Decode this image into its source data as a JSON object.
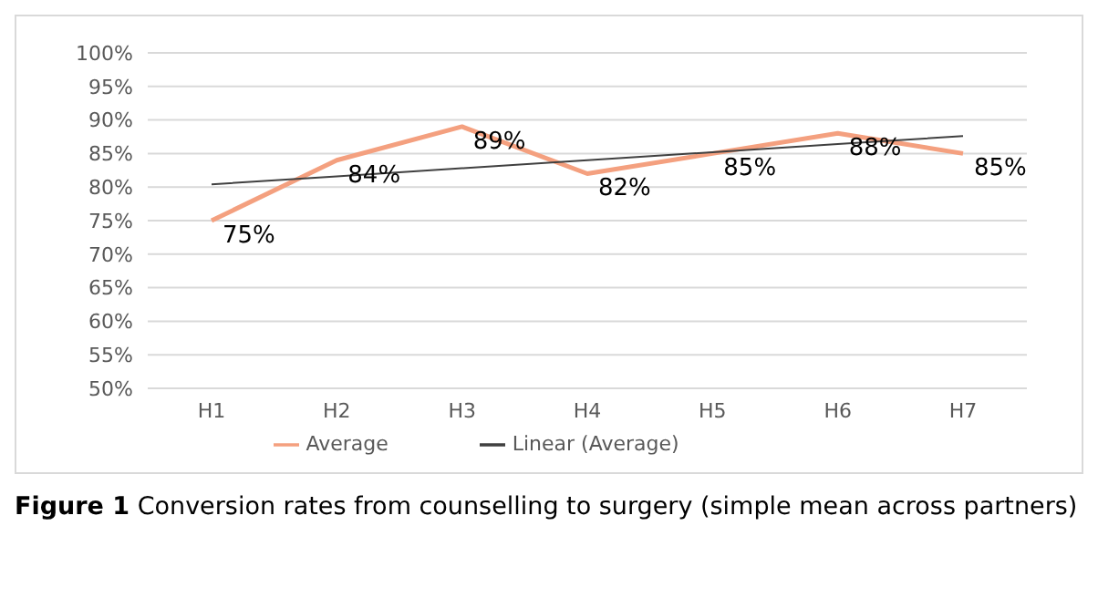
{
  "chart_data": {
    "type": "line",
    "title": "Figure 1 Conversion rates from counselling to surgery (simple mean across partners)",
    "categories": [
      "H1",
      "H2",
      "H3",
      "H4",
      "H5",
      "H6",
      "H7"
    ],
    "series": [
      {
        "name": "Average",
        "color": "#f4a07f",
        "values": [
          75,
          84,
          89,
          82,
          85,
          88,
          85
        ],
        "value_labels": [
          "75%",
          "84%",
          "89%",
          "82%",
          "85%",
          "88%",
          "85%"
        ]
      },
      {
        "name": "Linear (Average)",
        "type": "line",
        "color": "#404040",
        "values": [
          80.4,
          81.6,
          82.8,
          84,
          85.2,
          86.4,
          87.6
        ]
      }
    ],
    "ylim": [
      50,
      100
    ],
    "yticks": [
      {
        "value": 50,
        "label": "50%"
      },
      {
        "value": 55,
        "label": "55%"
      },
      {
        "value": 60,
        "label": "60%"
      },
      {
        "value": 65,
        "label": "65%"
      },
      {
        "value": 70,
        "label": "70%"
      },
      {
        "value": 75,
        "label": "75%"
      },
      {
        "value": 80,
        "label": "80%"
      },
      {
        "value": 85,
        "label": "85%"
      },
      {
        "value": 90,
        "label": "90%"
      },
      {
        "value": 95,
        "label": "95%"
      },
      {
        "value": 100,
        "label": "100%"
      }
    ],
    "grid": "y",
    "legend": "bottom",
    "marker": "none",
    "line_style": "solid"
  }
}
